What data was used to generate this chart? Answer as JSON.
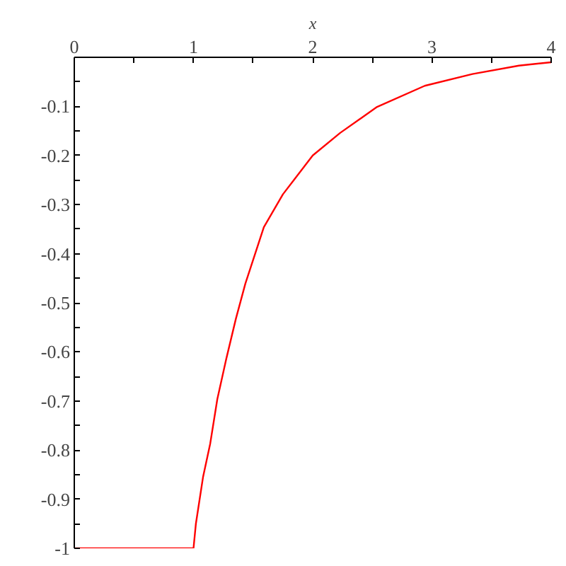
{
  "chart_data": {
    "type": "line",
    "xlabel": "x",
    "xlim": [
      0,
      4
    ],
    "ylim": [
      -1,
      0
    ],
    "xticks": [
      0,
      {
        "value": 0.5,
        "label": null
      },
      1,
      {
        "value": 1.5,
        "label": null
      },
      2,
      {
        "value": 2.5,
        "label": null
      },
      3,
      {
        "value": 3.5,
        "label": null
      },
      4
    ],
    "yticks": [
      {
        "value": -0.05,
        "label": null
      },
      -0.1,
      {
        "value": -0.15,
        "label": null
      },
      -0.2,
      {
        "value": -0.25,
        "label": null
      },
      -0.3,
      {
        "value": -0.35,
        "label": null
      },
      -0.4,
      {
        "value": -0.45,
        "label": null
      },
      -0.5,
      {
        "value": -0.55,
        "label": null
      },
      -0.6,
      {
        "value": -0.65,
        "label": null
      },
      -0.7,
      {
        "value": -0.75,
        "label": null
      },
      -0.8,
      {
        "value": -0.85,
        "label": null
      },
      -0.9,
      {
        "value": -0.95,
        "label": null
      },
      -1
    ],
    "grid": false,
    "marker": "none",
    "line_style": "solid",
    "series": [
      {
        "color": "#ff0000",
        "x": [
          0,
          0.97,
          1.0,
          1.02,
          1.08,
          1.14,
          1.2,
          1.275,
          1.355,
          1.435,
          1.59,
          1.75,
          2.0,
          2.23,
          2.54,
          2.94,
          3.34,
          3.73,
          4.0
        ],
        "values": [
          -1,
          -1,
          -1,
          -0.95,
          -0.855,
          -0.787,
          -0.696,
          -0.614,
          -0.533,
          -0.461,
          -0.346,
          -0.279,
          -0.2,
          -0.154,
          -0.101,
          -0.058,
          -0.034,
          -0.017,
          -0.01
        ]
      }
    ]
  }
}
